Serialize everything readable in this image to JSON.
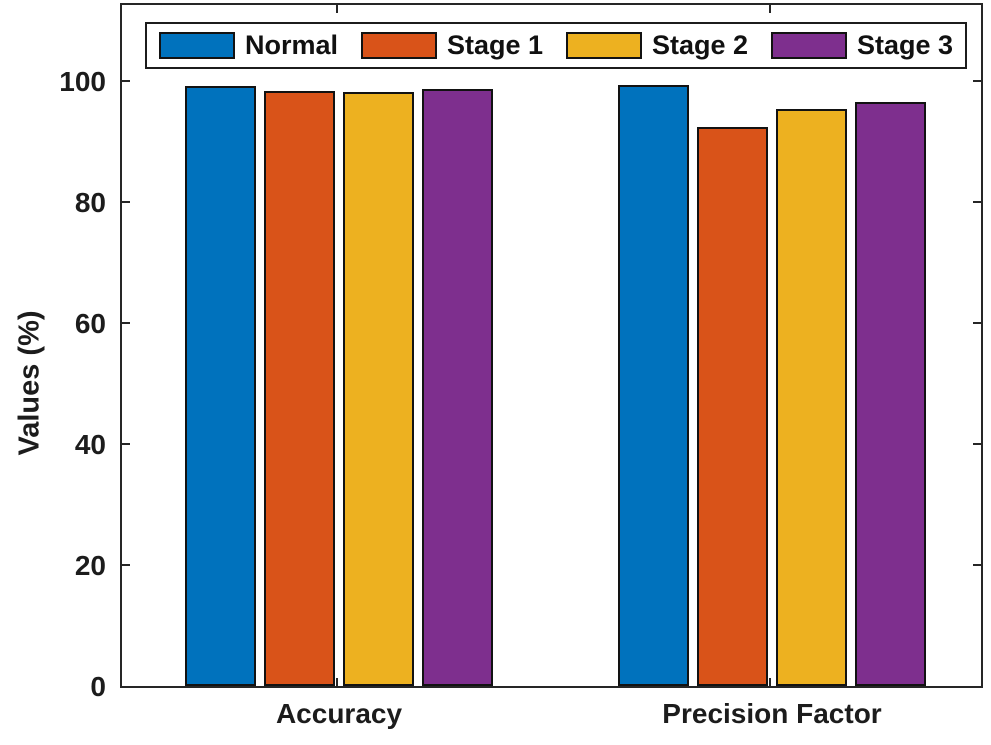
{
  "chart_data": {
    "type": "bar",
    "title": "",
    "categories": [
      "Accuracy",
      "Precision Factor"
    ],
    "series": [
      {
        "name": "Normal",
        "color": "#0072BD",
        "values": [
          99.2,
          99.4
        ]
      },
      {
        "name": "Stage 1",
        "color": "#D95319",
        "values": [
          98.3,
          92.4
        ]
      },
      {
        "name": "Stage 2",
        "color": "#EDB120",
        "values": [
          98.2,
          95.4
        ]
      },
      {
        "name": "Stage 3",
        "color": "#7E2F8E",
        "values": [
          98.7,
          96.6
        ]
      }
    ],
    "xlabel": "",
    "ylabel": "Values (%)",
    "ylim": [
      0,
      113
    ],
    "yticks": [
      0,
      20,
      40,
      60,
      80,
      100
    ],
    "grid": false,
    "legend_position": "top-inside",
    "axis_color": "#262626",
    "bar_edge_color": "#121212",
    "background_color": "#ffffff"
  }
}
